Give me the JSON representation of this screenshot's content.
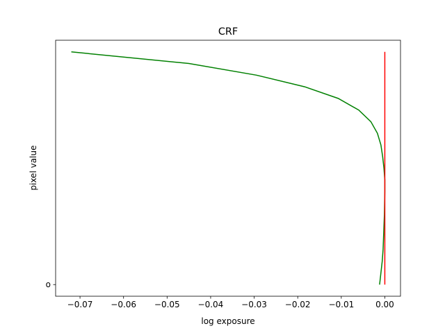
{
  "chart_data": {
    "type": "line",
    "title": "CRF",
    "xlabel": "log exposure",
    "ylabel": "pixel value",
    "xlim": [
      -0.0756,
      0.0036
    ],
    "ylim": [
      -0.05,
      1.05
    ],
    "x_ticks": [
      {
        "value": -0.07,
        "label": "−0.07"
      },
      {
        "value": -0.06,
        "label": "−0.06"
      },
      {
        "value": -0.05,
        "label": "−0.05"
      },
      {
        "value": -0.04,
        "label": "−0.04"
      },
      {
        "value": -0.03,
        "label": "−0.03"
      },
      {
        "value": -0.02,
        "label": "−0.02"
      },
      {
        "value": -0.01,
        "label": "−0.01"
      },
      {
        "value": 0.0,
        "label": "0.00"
      }
    ],
    "y_ticks": [
      {
        "value": 0,
        "label": "o"
      }
    ],
    "grid": false,
    "series": [
      {
        "color": "#008000",
        "points": [
          [
            -0.0012,
            0.0
          ],
          [
            -0.0009,
            0.05
          ],
          [
            -0.0006,
            0.1
          ],
          [
            -0.0004,
            0.15
          ],
          [
            -0.0003,
            0.2
          ],
          [
            -0.0002,
            0.25
          ],
          [
            -0.0001,
            0.3
          ],
          [
            -5e-05,
            0.35
          ],
          [
            0.0,
            0.4
          ],
          [
            0.0,
            0.45
          ],
          [
            -0.0002,
            0.5
          ],
          [
            -0.0005,
            0.55
          ],
          [
            -0.0009,
            0.6
          ],
          [
            -0.0017,
            0.65
          ],
          [
            -0.0032,
            0.7
          ],
          [
            -0.006,
            0.75
          ],
          [
            -0.0107,
            0.8
          ],
          [
            -0.0184,
            0.85
          ],
          [
            -0.0295,
            0.9
          ],
          [
            -0.045,
            0.95
          ],
          [
            -0.072,
            1.0
          ]
        ]
      },
      {
        "color": "#ff0000",
        "points": [
          [
            0.0,
            0.0
          ],
          [
            0.0,
            1.0
          ]
        ]
      }
    ]
  }
}
